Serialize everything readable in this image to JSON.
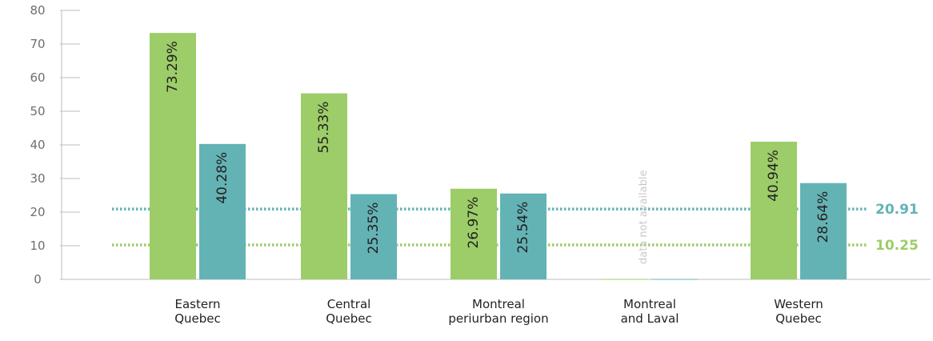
{
  "chart_data": {
    "type": "bar",
    "categories": [
      [
        "Eastern",
        "Quebec"
      ],
      [
        "Central",
        "Quebec"
      ],
      [
        "Montreal",
        "periurban region"
      ],
      [
        "Montreal",
        "and Laval"
      ],
      [
        "Western",
        "Quebec"
      ]
    ],
    "series": [
      {
        "color": "#9ccd68",
        "values": [
          73.29,
          55.33,
          26.97,
          null,
          40.94
        ],
        "labels": [
          "73.29%",
          "55.33%",
          "26.97%",
          "",
          "40.94%"
        ]
      },
      {
        "color": "#63b3b5",
        "values": [
          40.28,
          25.35,
          25.54,
          null,
          28.64
        ],
        "labels": [
          "40.28%",
          "25.35%",
          "25.54%",
          "",
          "28.64%"
        ]
      }
    ],
    "na_label": "data not available",
    "reference_lines": [
      {
        "value": 20.91,
        "label": "20.91",
        "color": "#63b3b5"
      },
      {
        "value": 10.25,
        "label": "10.25",
        "color": "#9ccd68"
      }
    ],
    "ylim": [
      0,
      80
    ],
    "yticks": [
      0,
      10,
      20,
      30,
      40,
      50,
      60,
      70,
      80
    ],
    "grid": false,
    "title": "",
    "xlabel": "",
    "ylabel": ""
  }
}
